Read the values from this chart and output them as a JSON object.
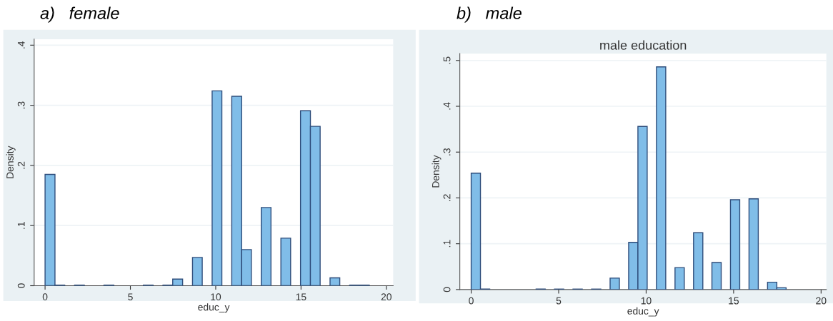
{
  "chart_data": [
    {
      "type": "histogram",
      "annotations": [
        "a)   female"
      ],
      "xlabel": "educ_y",
      "ylabel": "Density",
      "color": "#80bde8",
      "grid": "y",
      "bins": [
        0,
        0.58,
        1.15,
        1.73,
        2.3,
        2.88,
        3.45,
        4.03,
        4.61,
        5.18,
        5.76,
        6.33,
        6.91,
        7.48,
        8.06,
        8.64,
        9.21,
        9.79,
        10.36,
        10.94,
        11.52,
        12.09,
        12.67,
        13.24,
        13.82,
        14.39,
        14.97,
        15.55,
        16.12,
        16.7,
        17.27,
        17.85,
        18.42,
        19
      ],
      "values": [
        0.185,
        0.001,
        0,
        0.001,
        0,
        0,
        0.001,
        0,
        0,
        0,
        0.001,
        0,
        0.001,
        0.011,
        0,
        0.047,
        0,
        0.324,
        0,
        0.315,
        0.06,
        0,
        0.13,
        0,
        0.079,
        0,
        0.291,
        0.265,
        0,
        0.013,
        0,
        0.001,
        0.001
      ],
      "xlim": [
        -0.64,
        20.4
      ],
      "xticks": [
        0,
        5,
        10,
        15,
        20
      ],
      "ylim": [
        0,
        0.41
      ],
      "yticks": [
        0,
        {
          "value": 0.1,
          "label": ".1"
        },
        {
          "value": 0.2,
          "label": ".2"
        },
        {
          "value": 0.3,
          "label": ".3"
        },
        {
          "value": 0.4,
          "label": ".4"
        }
      ]
    },
    {
      "type": "histogram",
      "annotations": [
        "b)   male"
      ],
      "title": "male education",
      "xlabel": "educ_y",
      "ylabel": "Density",
      "color": "#80bde8",
      "grid": "y",
      "bins": [
        0,
        0.53,
        1.06,
        1.59,
        2.12,
        2.65,
        3.18,
        3.71,
        4.24,
        4.76,
        5.29,
        5.82,
        6.35,
        6.88,
        7.41,
        7.94,
        8.47,
        9,
        9.53,
        10.06,
        10.59,
        11.12,
        11.65,
        12.18,
        12.71,
        13.24,
        13.76,
        14.29,
        14.82,
        15.35,
        15.88,
        16.41,
        16.94,
        17.47,
        18
      ],
      "values": [
        0.254,
        0.001,
        0,
        0,
        0,
        0,
        0,
        0.001,
        0,
        0.001,
        0,
        0.001,
        0,
        0.001,
        0,
        0.025,
        0,
        0.103,
        0.356,
        0,
        0.486,
        0,
        0.048,
        0,
        0.124,
        0,
        0.059,
        0,
        0.196,
        0,
        0.198,
        0,
        0.016,
        0.004
      ],
      "xlim": [
        -0.65,
        20.3
      ],
      "xticks": [
        0,
        5,
        10,
        15,
        20
      ],
      "ylim": [
        0,
        0.515
      ],
      "yticks": [
        0,
        {
          "value": 0.1,
          "label": ".1"
        },
        {
          "value": 0.2,
          "label": ".2"
        },
        {
          "value": 0.3,
          "label": ".3"
        },
        {
          "value": 0.4,
          "label": ".4"
        },
        {
          "value": 0.5,
          "label": ".5"
        }
      ]
    }
  ]
}
